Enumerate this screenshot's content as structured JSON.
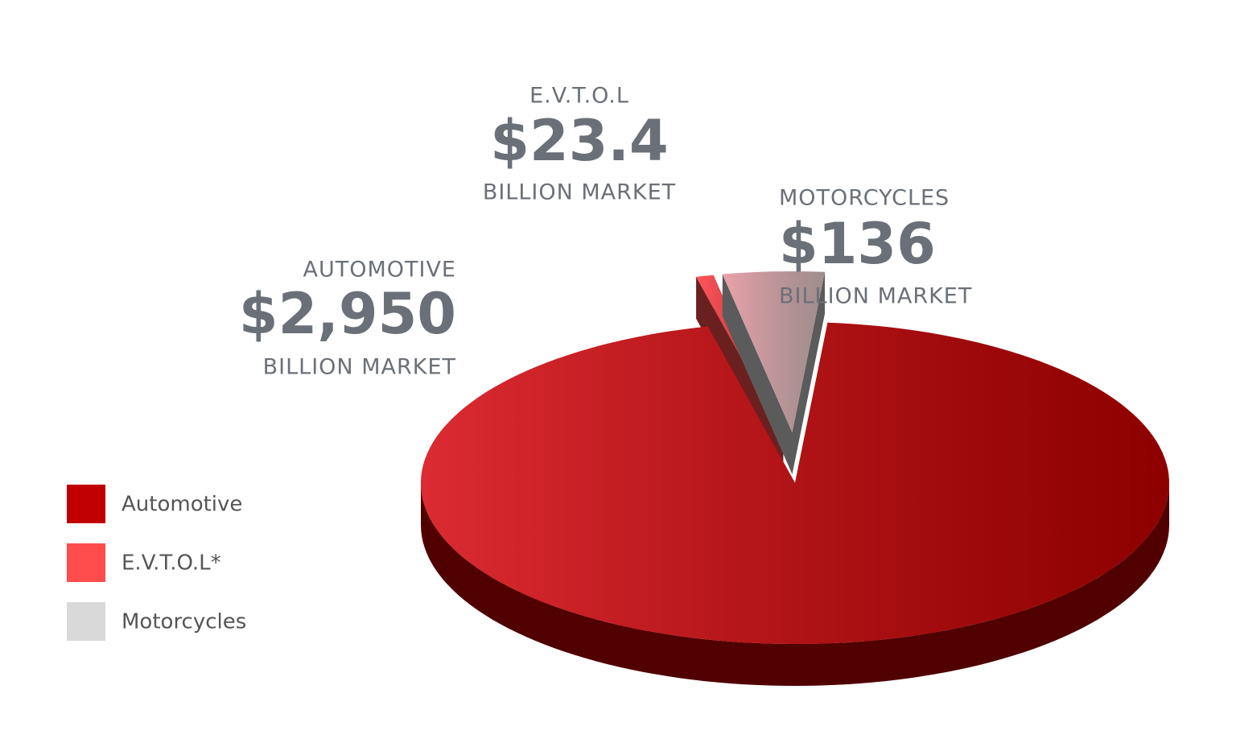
{
  "chart_data": {
    "type": "pie",
    "categories": [
      "Automotive",
      "E.V.T.O.L*",
      "Motorcycles"
    ],
    "values": [
      2950,
      23.4,
      136
    ],
    "value_labels": [
      "$2,950",
      "$23.4",
      "$136"
    ],
    "slice_labels": [
      "AUTOMOTIVE",
      "E.V.T.O.L",
      "MOTORCYCLES"
    ],
    "unit_labels": [
      "BILLION MARKET",
      "BILLION MARKET",
      "BILLION MARKET"
    ],
    "colors": [
      "#c00000",
      "#ff4d4d",
      "#d9d9d9"
    ]
  }
}
